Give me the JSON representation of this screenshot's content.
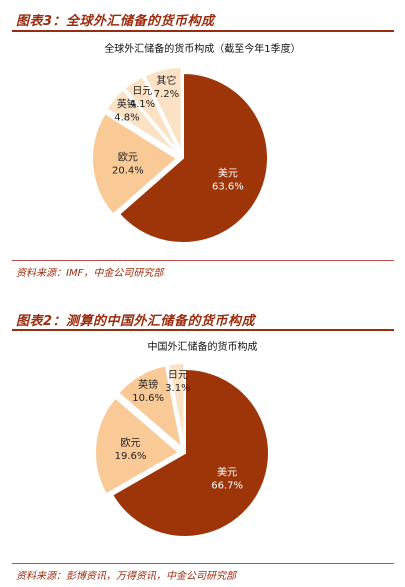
{
  "colors": {
    "accent": "#9b2d0f",
    "usd": "#9e3508",
    "eur": "#f9c996",
    "other": "#fbe2c4",
    "edge": "#ffffff"
  },
  "fig3": {
    "title": "图表3：全球外汇储备的货币构成",
    "source": "资料来源：IMF，中金公司研究部"
  },
  "fig2": {
    "title": "图表2：测算的中国外汇储备的货币构成",
    "source": "资料来源：彭博资讯，万得资讯，中金公司研究部"
  },
  "chart_data": [
    {
      "type": "pie",
      "title": "全球外汇储备的货币构成（截至今年1季度）",
      "categories": [
        "美元",
        "欧元",
        "英镑",
        "日元",
        "其它"
      ],
      "values": [
        63.6,
        20.4,
        4.8,
        4.1,
        7.2
      ],
      "value_labels": [
        "63.6%",
        "20.4%",
        "4.8%",
        "4.1%",
        "7.2%"
      ],
      "start": "12 o'clock",
      "direction": "clockwise",
      "legend": "none (labels on slices)"
    },
    {
      "type": "pie",
      "title": "中国外汇储备的货币构成",
      "categories": [
        "美元",
        "欧元",
        "英镑",
        "日元"
      ],
      "values": [
        66.7,
        19.6,
        10.6,
        3.1
      ],
      "value_labels": [
        "66.7%",
        "19.6%",
        "10.6%",
        "3.1%"
      ],
      "start": "12 o'clock",
      "direction": "clockwise",
      "legend": "none (labels on slices)"
    }
  ]
}
